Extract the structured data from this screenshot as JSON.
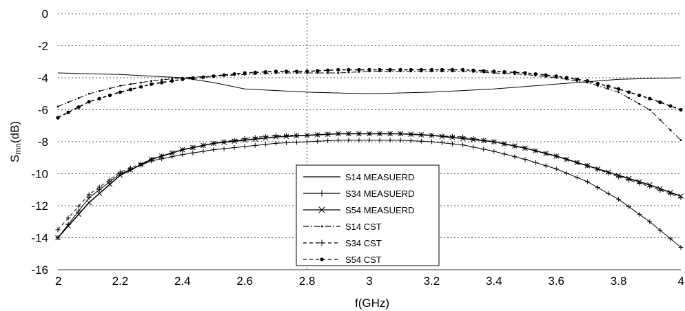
{
  "chart_data": {
    "type": "line",
    "xlabel": "f(GHz)",
    "ylabel_main": "S",
    "ylabel_sub": "mn",
    "ylabel_tail": "(dB)",
    "xlim": [
      2,
      4
    ],
    "ylim": [
      -16,
      0
    ],
    "xticks": [
      2,
      2.2,
      2.4,
      2.6,
      2.8,
      3,
      3.2,
      3.4,
      3.6,
      3.8,
      4
    ],
    "xtick_labels": [
      "2",
      "2.2",
      "2.4",
      "2.6",
      "2.8",
      "3",
      "3.2",
      "3.4",
      "3.6",
      "3.8",
      "4"
    ],
    "yticks": [
      0,
      -2,
      -4,
      -6,
      -8,
      -10,
      -12,
      -14,
      -16
    ],
    "ytick_labels": [
      "0",
      "-2",
      "-4",
      "-6",
      "-8",
      "-10",
      "-12",
      "-14",
      "-16"
    ],
    "grid": "dotted horizontal",
    "marker_x": 2.8,
    "legend_position": "bottom-center",
    "series": [
      {
        "name": "S14 MEASUERD",
        "line": "solid",
        "marker": "none",
        "x": [
          2,
          2.2,
          2.4,
          2.5,
          2.6,
          2.8,
          3.0,
          3.2,
          3.4,
          3.6,
          3.8,
          4.0
        ],
        "y": [
          -3.7,
          -3.8,
          -4.0,
          -4.3,
          -4.7,
          -4.9,
          -5.0,
          -4.9,
          -4.7,
          -4.4,
          -4.1,
          -4.0
        ]
      },
      {
        "name": "S34 MEASUERD",
        "line": "solid",
        "marker": "plus",
        "x": [
          2,
          2.1,
          2.2,
          2.3,
          2.4,
          2.5,
          2.6,
          2.7,
          2.8,
          2.9,
          3.0,
          3.1,
          3.2,
          3.3,
          3.4,
          3.5,
          3.6,
          3.7,
          3.8,
          3.9,
          4.0
        ],
        "y": [
          -14.0,
          -11.5,
          -10.0,
          -9.2,
          -8.8,
          -8.5,
          -8.3,
          -8.1,
          -8.0,
          -7.9,
          -7.9,
          -7.9,
          -8.0,
          -8.2,
          -8.6,
          -9.1,
          -9.7,
          -10.5,
          -11.6,
          -13.0,
          -14.6
        ]
      },
      {
        "name": "S54 MEASUERD",
        "line": "solid",
        "marker": "x",
        "x": [
          2,
          2.1,
          2.2,
          2.3,
          2.4,
          2.5,
          2.6,
          2.7,
          2.8,
          2.9,
          3.0,
          3.1,
          3.2,
          3.3,
          3.4,
          3.5,
          3.6,
          3.7,
          3.8,
          3.9,
          4.0
        ],
        "y": [
          -14.0,
          -11.8,
          -10.1,
          -9.1,
          -8.5,
          -8.1,
          -7.9,
          -7.7,
          -7.6,
          -7.5,
          -7.5,
          -7.5,
          -7.6,
          -7.8,
          -8.0,
          -8.4,
          -8.9,
          -9.5,
          -10.1,
          -10.7,
          -11.4
        ]
      },
      {
        "name": "S14 CST",
        "line": "dashdot",
        "marker": "dot",
        "x": [
          2,
          2.1,
          2.2,
          2.3,
          2.4,
          2.5,
          2.6,
          2.7,
          2.8,
          2.9,
          3.0,
          3.1,
          3.2,
          3.3,
          3.4,
          3.5,
          3.6,
          3.7,
          3.8,
          3.9,
          4.0
        ],
        "y": [
          -5.8,
          -5.0,
          -4.5,
          -4.2,
          -4.0,
          -3.9,
          -3.8,
          -3.7,
          -3.7,
          -3.7,
          -3.6,
          -3.6,
          -3.6,
          -3.6,
          -3.7,
          -3.8,
          -4.0,
          -4.3,
          -4.9,
          -6.0,
          -7.9
        ]
      },
      {
        "name": "S34 CST",
        "line": "dashed",
        "marker": "plus",
        "x": [
          2,
          2.1,
          2.2,
          2.3,
          2.4,
          2.5,
          2.6,
          2.7,
          2.8,
          2.9,
          3.0,
          3.1,
          3.2,
          3.3,
          3.4,
          3.5,
          3.6,
          3.7,
          3.8,
          3.9,
          4.0
        ],
        "y": [
          -13.5,
          -11.3,
          -9.9,
          -9.1,
          -8.5,
          -8.1,
          -7.8,
          -7.6,
          -7.6,
          -7.5,
          -7.5,
          -7.5,
          -7.6,
          -7.7,
          -8.0,
          -8.4,
          -8.9,
          -9.5,
          -10.2,
          -10.8,
          -11.5
        ]
      },
      {
        "name": "S54 CST",
        "line": "dashed",
        "marker": "star",
        "x": [
          2,
          2.1,
          2.2,
          2.3,
          2.4,
          2.5,
          2.6,
          2.7,
          2.8,
          2.9,
          3.0,
          3.1,
          3.2,
          3.3,
          3.4,
          3.5,
          3.6,
          3.7,
          3.8,
          3.9,
          4.0
        ],
        "y": [
          -6.5,
          -5.5,
          -4.9,
          -4.4,
          -4.1,
          -3.9,
          -3.7,
          -3.6,
          -3.6,
          -3.5,
          -3.5,
          -3.5,
          -3.5,
          -3.5,
          -3.6,
          -3.7,
          -3.9,
          -4.2,
          -4.7,
          -5.3,
          -6.0
        ]
      }
    ]
  }
}
